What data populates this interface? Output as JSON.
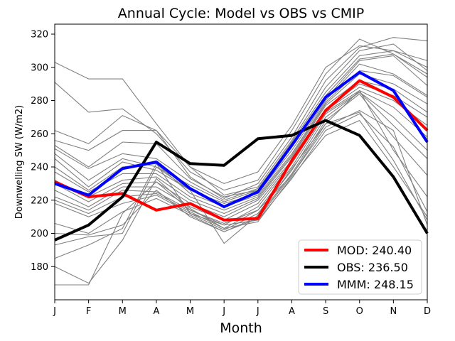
{
  "chart_data": {
    "type": "line",
    "title": "Annual Cycle: Model vs OBS vs CMIP",
    "xlabel": "Month",
    "ylabel": "Downwelling SW (W/m2)",
    "categories": [
      "J",
      "F",
      "M",
      "A",
      "M",
      "J",
      "J",
      "A",
      "S",
      "O",
      "N",
      "D"
    ],
    "ylim": [
      160,
      326
    ],
    "yticks": [
      180,
      200,
      220,
      240,
      260,
      280,
      300,
      320
    ],
    "grid": false,
    "legend_position": "lower-right",
    "series": [
      {
        "name": "MOD",
        "legend_label": "MOD: 240.40",
        "color": "#ff0000",
        "width": 4,
        "values": [
          231,
          222,
          224,
          214,
          218,
          208,
          209,
          244,
          274,
          292,
          282,
          262
        ]
      },
      {
        "name": "OBS",
        "legend_label": "OBS: 236.50",
        "color": "#000000",
        "width": 4,
        "values": [
          196,
          205,
          222,
          255,
          242,
          241,
          257,
          259,
          268,
          259,
          234,
          200
        ]
      },
      {
        "name": "MMM",
        "legend_label": "MMM: 248.15",
        "color": "#0000ff",
        "width": 4,
        "values": [
          230,
          223,
          239,
          243,
          227,
          216,
          225,
          253,
          282,
          297,
          286,
          255
        ]
      }
    ],
    "cmip_color": "#808080",
    "cmip_members": [
      [
        303,
        293,
        293,
        266,
        240,
        230,
        237,
        265,
        300,
        313,
        310,
        304
      ],
      [
        291,
        273,
        275,
        260,
        237,
        226,
        232,
        262,
        296,
        317,
        308,
        296
      ],
      [
        262,
        254,
        271,
        262,
        234,
        221,
        230,
        258,
        292,
        312,
        318,
        316
      ],
      [
        256,
        250,
        262,
        262,
        240,
        223,
        228,
        256,
        288,
        310,
        314,
        298
      ],
      [
        253,
        240,
        255,
        254,
        233,
        222,
        226,
        255,
        285,
        307,
        310,
        300
      ],
      [
        251,
        239,
        248,
        245,
        231,
        220,
        227,
        254,
        283,
        305,
        308,
        294
      ],
      [
        248,
        232,
        245,
        240,
        229,
        219,
        226,
        252,
        281,
        304,
        307,
        289
      ],
      [
        245,
        228,
        243,
        238,
        226,
        218,
        224,
        250,
        280,
        302,
        296,
        283
      ],
      [
        240,
        226,
        240,
        242,
        224,
        216,
        223,
        248,
        279,
        298,
        295,
        282
      ],
      [
        237,
        225,
        236,
        236,
        222,
        214,
        222,
        247,
        278,
        296,
        290,
        278
      ],
      [
        232,
        222,
        232,
        234,
        220,
        212,
        221,
        246,
        277,
        292,
        287,
        273
      ],
      [
        230,
        219,
        230,
        231,
        218,
        210,
        220,
        244,
        275,
        290,
        283,
        270
      ],
      [
        226,
        216,
        228,
        228,
        216,
        208,
        218,
        243,
        274,
        288,
        280,
        265
      ],
      [
        222,
        214,
        226,
        225,
        214,
        205,
        216,
        242,
        273,
        286,
        276,
        258
      ],
      [
        220,
        212,
        222,
        224,
        213,
        203,
        214,
        240,
        272,
        285,
        270,
        250
      ],
      [
        218,
        210,
        218,
        223,
        212,
        202,
        212,
        238,
        270,
        285,
        265,
        245
      ],
      [
        206,
        200,
        213,
        221,
        211,
        201,
        210,
        236,
        268,
        284,
        258,
        235
      ],
      [
        200,
        199,
        205,
        226,
        210,
        201,
        209,
        235,
        266,
        286,
        250,
        222
      ],
      [
        193,
        198,
        200,
        240,
        226,
        194,
        211,
        239,
        266,
        273,
        244,
        208
      ],
      [
        185,
        193,
        203,
        242,
        212,
        205,
        208,
        233,
        262,
        272,
        252,
        213
      ],
      [
        180,
        170,
        196,
        233,
        215,
        203,
        207,
        234,
        259,
        268,
        240,
        210
      ],
      [
        169,
        169,
        212,
        231,
        214,
        206,
        214,
        235,
        264,
        274,
        262,
        205
      ]
    ]
  }
}
